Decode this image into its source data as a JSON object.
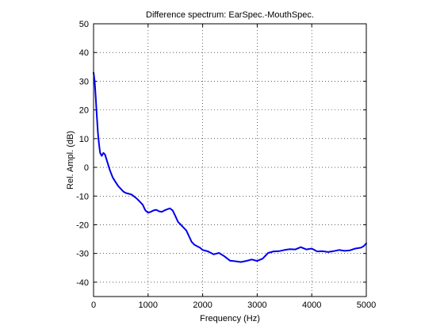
{
  "chart_data": {
    "type": "line",
    "title": "Difference spectrum: EarSpec.-MouthSpec.",
    "xlabel": "Frequency (Hz)",
    "ylabel": "Rel. Ampl. (dB)",
    "xlim": [
      0,
      5000
    ],
    "ylim": [
      -45,
      50
    ],
    "xticks": [
      0,
      1000,
      2000,
      3000,
      4000,
      5000
    ],
    "yticks": [
      -40,
      -30,
      -20,
      -10,
      0,
      10,
      20,
      30,
      40,
      50
    ],
    "xtick_labels": [
      "0",
      "1000",
      "2000",
      "3000",
      "4000",
      "5000"
    ],
    "ytick_labels": [
      "-40",
      "-30",
      "-20",
      "-10",
      "0",
      "10",
      "20",
      "30",
      "40",
      "50"
    ],
    "grid": true,
    "line_color": "#0000ee",
    "series": [
      {
        "x": [
          0,
          20,
          40,
          60,
          80,
          100,
          120,
          150,
          180,
          210,
          250,
          300,
          350,
          400,
          450,
          500,
          550,
          600,
          650,
          700,
          800,
          900,
          950,
          1000,
          1050,
          1100,
          1150,
          1200,
          1250,
          1300,
          1350,
          1400,
          1450,
          1500,
          1550,
          1600,
          1650,
          1700,
          1750,
          1800,
          1850,
          1900,
          1950,
          2000,
          2100,
          2200,
          2300,
          2400,
          2500,
          2600,
          2700,
          2800,
          2900,
          3000,
          3100,
          3200,
          3300,
          3400,
          3500,
          3600,
          3700,
          3800,
          3900,
          4000,
          4100,
          4200,
          4300,
          4400,
          4500,
          4600,
          4700,
          4800,
          4900,
          4950,
          5000
        ],
        "y": [
          33,
          30,
          24,
          18,
          12,
          8,
          5,
          4,
          5,
          4.5,
          2,
          -1,
          -3.5,
          -5,
          -6.5,
          -7.5,
          -8.5,
          -9,
          -9.2,
          -9.5,
          -11,
          -13,
          -15,
          -15.8,
          -15.5,
          -15,
          -14.8,
          -15.3,
          -15.5,
          -15,
          -14.6,
          -14.3,
          -15,
          -17,
          -19,
          -20,
          -21,
          -22,
          -24,
          -26,
          -27,
          -27.5,
          -28,
          -28.8,
          -29.3,
          -30.3,
          -29.8,
          -31,
          -32.5,
          -32.7,
          -33,
          -32.6,
          -32.1,
          -32.6,
          -31.8,
          -29.8,
          -29.3,
          -29.2,
          -28.8,
          -28.5,
          -28.6,
          -27.8,
          -28.6,
          -28.3,
          -29.3,
          -29.2,
          -29.5,
          -29.2,
          -28.8,
          -29.1,
          -28.9,
          -28.3,
          -28.0,
          -27.5,
          -26.5
        ]
      }
    ]
  }
}
